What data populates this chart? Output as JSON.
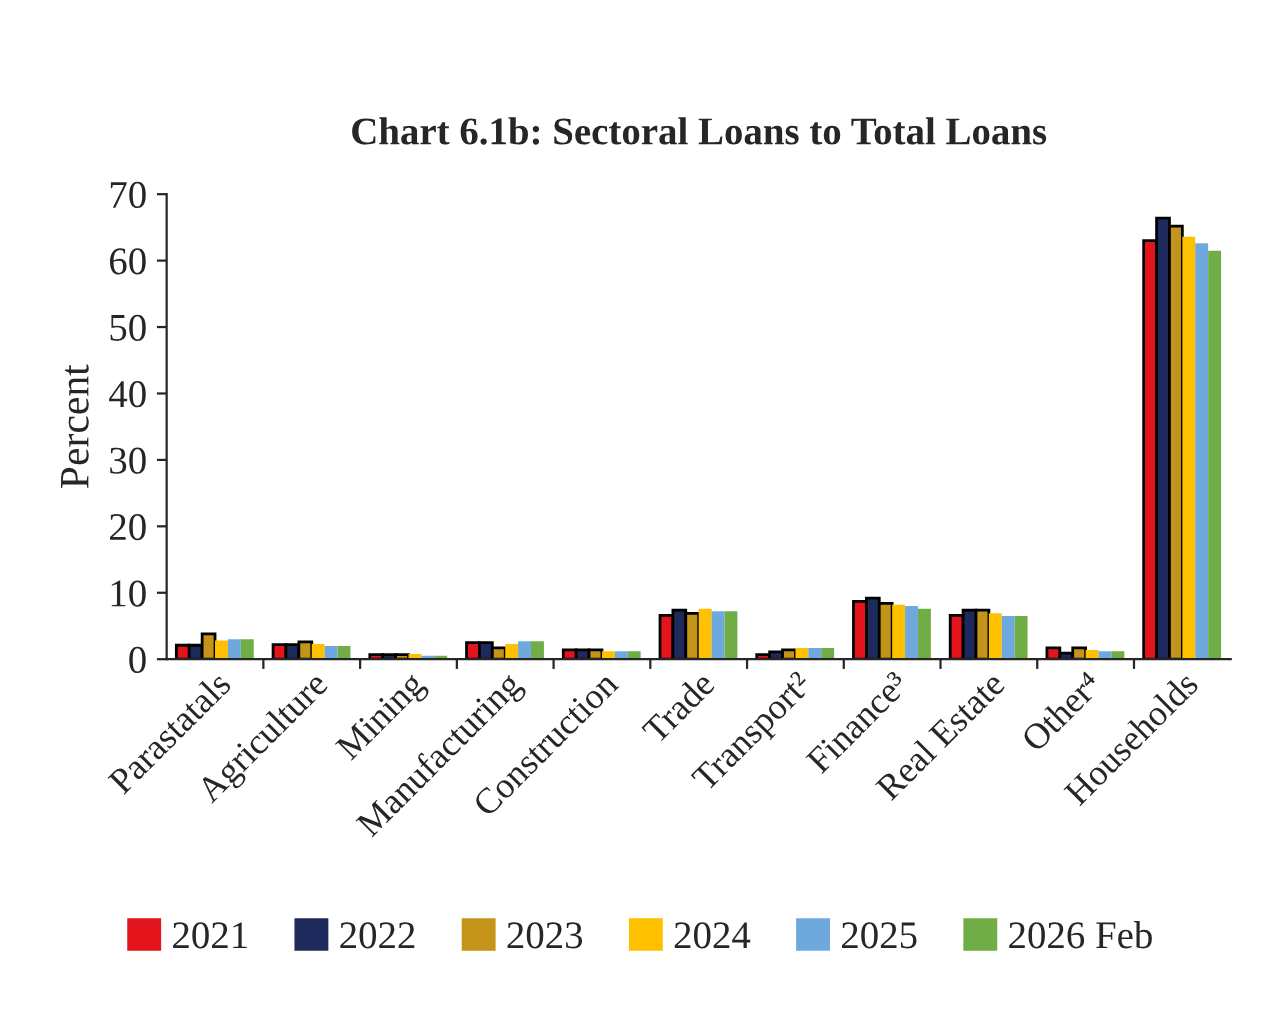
{
  "chart_data": {
    "type": "bar",
    "title": "Chart 6.1b: Sectoral Loans to Total Loans",
    "ylabel": "Percent",
    "categories": [
      "Parastatals",
      "Agriculture",
      "Mining",
      "Manufacturing",
      "Construction",
      "Trade",
      "Transport²",
      "Finance³",
      "Real Estate",
      "Other⁴",
      "Households"
    ],
    "series": [
      {
        "name": "2021",
        "color": "#e3141b",
        "values": [
          2.1,
          2.2,
          0.7,
          2.5,
          1.4,
          6.6,
          0.7,
          8.7,
          6.6,
          1.7,
          63.0
        ]
      },
      {
        "name": "2022",
        "color": "#1f2a5c",
        "values": [
          2.1,
          2.2,
          0.7,
          2.5,
          1.4,
          7.4,
          1.1,
          9.2,
          7.4,
          0.9,
          66.4
        ]
      },
      {
        "name": "2023",
        "color": "#c39419",
        "values": [
          3.8,
          2.6,
          0.7,
          1.7,
          1.4,
          6.9,
          1.4,
          8.4,
          7.4,
          1.7,
          65.2
        ]
      },
      {
        "name": "2024",
        "color": "#ffc000",
        "values": [
          2.8,
          2.3,
          0.8,
          2.3,
          1.2,
          7.6,
          1.7,
          8.2,
          6.9,
          1.4,
          63.6
        ]
      },
      {
        "name": "2025",
        "color": "#6fa8dc",
        "values": [
          3.0,
          2.0,
          0.5,
          2.7,
          1.2,
          7.2,
          1.7,
          8.0,
          6.5,
          1.2,
          62.6
        ]
      },
      {
        "name": "2026 Feb",
        "color": "#70ad47",
        "values": [
          3.0,
          2.0,
          0.5,
          2.7,
          1.2,
          7.2,
          1.7,
          7.6,
          6.5,
          1.2,
          61.5
        ]
      }
    ],
    "ylim": [
      0,
      70
    ],
    "yticks": [
      0,
      10,
      20,
      30,
      40,
      50,
      60,
      70
    ],
    "grid": false,
    "legend": "bottom"
  }
}
